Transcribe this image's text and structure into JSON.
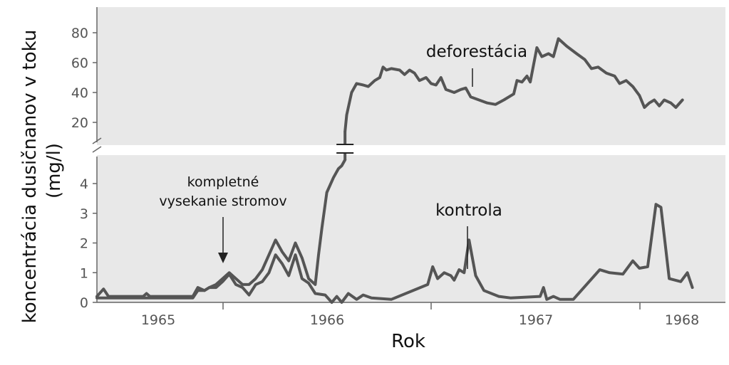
{
  "chart_data": {
    "type": "line",
    "xlabel": "Rok",
    "ylabel_line1": "koncentrácia dusičnanov v toku",
    "ylabel_line2": "(mg/l)",
    "x_ticks": [
      "1965",
      "1966",
      "1967",
      "1968"
    ],
    "y_ticks_upper": [
      "80",
      "60",
      "40",
      "20"
    ],
    "y_ticks_lower": [
      "4",
      "3",
      "2",
      "1",
      "0"
    ],
    "xlim": [
      1964.62,
      1968.42
    ],
    "ylim_lower": [
      0,
      4.8
    ],
    "ylim_upper": [
      10,
      95
    ],
    "axis_break": true,
    "grid": false,
    "background": "#e8e8e8",
    "line_color": "#555555",
    "annotations": {
      "cut": {
        "line1": "kompletné",
        "line2": "vysekanie stromov",
        "x": 1965.42
      },
      "deforested": "deforestácia",
      "control": "kontrola"
    },
    "series": [
      {
        "name": "deforestácia",
        "lower_part": [
          [
            1964.62,
            0.2
          ],
          [
            1964.66,
            0.45
          ],
          [
            1964.69,
            0.2
          ],
          [
            1964.9,
            0.2
          ],
          [
            1964.92,
            0.3
          ],
          [
            1964.94,
            0.2
          ],
          [
            1965.2,
            0.2
          ],
          [
            1965.23,
            0.5
          ],
          [
            1965.27,
            0.4
          ],
          [
            1965.3,
            0.5
          ],
          [
            1965.34,
            0.6
          ],
          [
            1965.38,
            0.8
          ],
          [
            1965.42,
            1.0
          ],
          [
            1965.46,
            0.8
          ],
          [
            1965.5,
            0.6
          ],
          [
            1965.54,
            0.6
          ],
          [
            1965.58,
            0.8
          ],
          [
            1965.62,
            1.1
          ],
          [
            1965.66,
            1.6
          ],
          [
            1965.7,
            2.1
          ],
          [
            1965.74,
            1.7
          ],
          [
            1965.78,
            1.4
          ],
          [
            1965.82,
            2.0
          ],
          [
            1965.86,
            1.5
          ],
          [
            1965.9,
            0.8
          ],
          [
            1965.94,
            0.6
          ],
          [
            1965.96,
            1.6
          ],
          [
            1965.98,
            2.5
          ],
          [
            1966.01,
            3.7
          ],
          [
            1966.05,
            4.2
          ],
          [
            1966.08,
            4.5
          ],
          [
            1966.1,
            4.6
          ],
          [
            1966.12,
            4.8
          ]
        ],
        "upper_part": [
          [
            1966.12,
            14
          ],
          [
            1966.13,
            25
          ],
          [
            1966.16,
            40
          ],
          [
            1966.19,
            46
          ],
          [
            1966.23,
            45
          ],
          [
            1966.26,
            44
          ],
          [
            1966.3,
            48
          ],
          [
            1966.33,
            50
          ],
          [
            1966.35,
            57
          ],
          [
            1966.37,
            55
          ],
          [
            1966.4,
            56
          ],
          [
            1966.45,
            55
          ],
          [
            1966.48,
            52
          ],
          [
            1966.51,
            55
          ],
          [
            1966.54,
            53
          ],
          [
            1966.57,
            48
          ],
          [
            1966.61,
            50
          ],
          [
            1966.64,
            46
          ],
          [
            1966.67,
            45
          ],
          [
            1966.7,
            50
          ],
          [
            1966.73,
            42
          ],
          [
            1966.78,
            40
          ],
          [
            1966.82,
            42
          ],
          [
            1966.85,
            43
          ],
          [
            1966.88,
            37
          ],
          [
            1966.93,
            35
          ],
          [
            1966.98,
            33
          ],
          [
            1967.03,
            32
          ],
          [
            1967.08,
            35
          ],
          [
            1967.14,
            39
          ],
          [
            1967.16,
            48
          ],
          [
            1967.19,
            47
          ],
          [
            1967.22,
            51
          ],
          [
            1967.24,
            47
          ],
          [
            1967.28,
            70
          ],
          [
            1967.31,
            64
          ],
          [
            1967.35,
            66
          ],
          [
            1967.38,
            64
          ],
          [
            1967.41,
            76
          ],
          [
            1967.46,
            71
          ],
          [
            1967.52,
            66
          ],
          [
            1967.57,
            62
          ],
          [
            1967.61,
            56
          ],
          [
            1967.65,
            57
          ],
          [
            1967.7,
            53
          ],
          [
            1967.75,
            51
          ],
          [
            1967.78,
            46
          ],
          [
            1967.82,
            48
          ],
          [
            1967.86,
            44
          ],
          [
            1967.9,
            38
          ],
          [
            1967.93,
            30
          ],
          [
            1967.96,
            33
          ],
          [
            1967.99,
            35
          ],
          [
            1968.02,
            31
          ],
          [
            1968.05,
            35
          ],
          [
            1968.09,
            33
          ],
          [
            1968.12,
            30
          ],
          [
            1968.16,
            35
          ]
        ]
      },
      {
        "name": "kontrola",
        "lower_part": [
          [
            1964.62,
            0.15
          ],
          [
            1964.9,
            0.15
          ],
          [
            1965.2,
            0.15
          ],
          [
            1965.23,
            0.4
          ],
          [
            1965.27,
            0.4
          ],
          [
            1965.3,
            0.5
          ],
          [
            1965.34,
            0.5
          ],
          [
            1965.38,
            0.7
          ],
          [
            1965.42,
            0.95
          ],
          [
            1965.46,
            0.6
          ],
          [
            1965.5,
            0.5
          ],
          [
            1965.54,
            0.25
          ],
          [
            1965.58,
            0.6
          ],
          [
            1965.62,
            0.7
          ],
          [
            1965.66,
            1.0
          ],
          [
            1965.7,
            1.6
          ],
          [
            1965.74,
            1.3
          ],
          [
            1965.78,
            0.9
          ],
          [
            1965.82,
            1.6
          ],
          [
            1965.86,
            0.8
          ],
          [
            1965.9,
            0.65
          ],
          [
            1965.94,
            0.3
          ],
          [
            1966.0,
            0.25
          ],
          [
            1966.04,
            0.0
          ],
          [
            1966.07,
            0.2
          ],
          [
            1966.1,
            0.0
          ],
          [
            1966.14,
            0.3
          ],
          [
            1966.19,
            0.1
          ],
          [
            1966.23,
            0.25
          ],
          [
            1966.28,
            0.15
          ],
          [
            1966.4,
            0.1
          ],
          [
            1966.62,
            0.6
          ],
          [
            1966.65,
            1.2
          ],
          [
            1966.68,
            0.8
          ],
          [
            1966.72,
            1.0
          ],
          [
            1966.76,
            0.9
          ],
          [
            1966.78,
            0.75
          ],
          [
            1966.81,
            1.1
          ],
          [
            1966.84,
            1.0
          ],
          [
            1966.87,
            2.1
          ],
          [
            1966.91,
            0.9
          ],
          [
            1966.96,
            0.4
          ],
          [
            1967.05,
            0.2
          ],
          [
            1967.12,
            0.15
          ],
          [
            1967.3,
            0.2
          ],
          [
            1967.32,
            0.5
          ],
          [
            1967.34,
            0.1
          ],
          [
            1967.38,
            0.2
          ],
          [
            1967.42,
            0.1
          ],
          [
            1967.5,
            0.1
          ],
          [
            1967.66,
            1.1
          ],
          [
            1967.72,
            1.0
          ],
          [
            1967.8,
            0.95
          ],
          [
            1967.86,
            1.4
          ],
          [
            1967.9,
            1.15
          ],
          [
            1967.95,
            1.2
          ],
          [
            1968.0,
            3.3
          ],
          [
            1968.03,
            3.2
          ],
          [
            1968.08,
            0.8
          ],
          [
            1968.15,
            0.7
          ],
          [
            1968.19,
            1.0
          ],
          [
            1968.22,
            0.5
          ]
        ]
      }
    ]
  }
}
